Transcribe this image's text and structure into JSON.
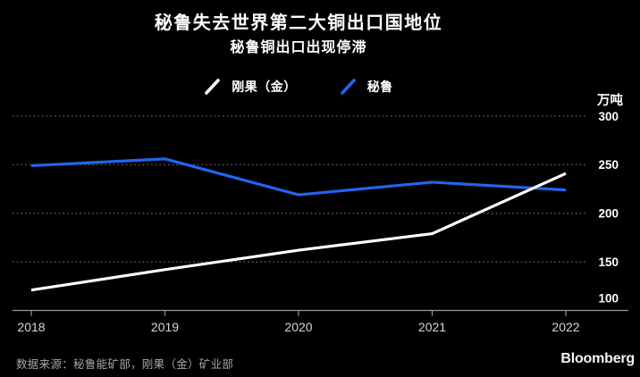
{
  "chart_data": {
    "type": "line",
    "title": "秘鲁失去世界第二大铜出口国地位",
    "subtitle": "秘鲁铜出口出现停滞",
    "unit_label": "万吨",
    "categories": [
      "2018",
      "2019",
      "2020",
      "2021",
      "2022"
    ],
    "series": [
      {
        "id": "congo-drc",
        "name": "刚果（金）",
        "color": "#ffffff",
        "values": [
          121,
          142,
          162,
          179,
          241
        ]
      },
      {
        "id": "peru",
        "name": "秘鲁",
        "color": "#2065ef",
        "values": [
          249,
          256,
          219,
          232,
          224
        ]
      }
    ],
    "ylim": [
      100,
      300
    ],
    "yticks": [
      300,
      250,
      200,
      150,
      100
    ],
    "grid": "horizontal-dotted",
    "legend_position": "top-center"
  },
  "footer": {
    "source": "数据来源：秘鲁能矿部，刚果（金）矿业部",
    "brand": "Bloomberg"
  }
}
